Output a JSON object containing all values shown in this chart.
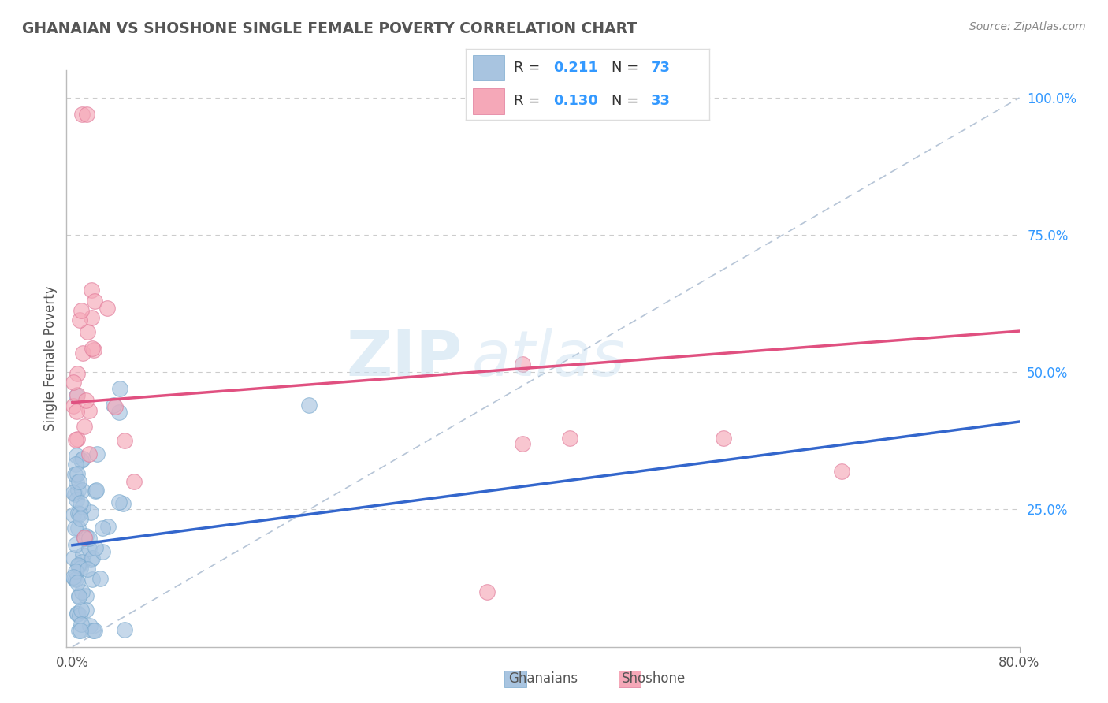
{
  "title": "GHANAIAN VS SHOSHONE SINGLE FEMALE POVERTY CORRELATION CHART",
  "source_text": "Source: ZipAtlas.com",
  "x_min": 0.0,
  "x_max": 0.8,
  "y_min": 0.0,
  "y_max": 1.05,
  "ghanaian_color": "#a8c4e0",
  "ghanaian_edge": "#7aaace",
  "shoshone_color": "#f5a8b8",
  "shoshone_edge": "#e07898",
  "ghanaian_R": 0.211,
  "ghanaian_N": 73,
  "shoshone_R": 0.13,
  "shoshone_N": 33,
  "legend_label_1": "Ghanaians",
  "legend_label_2": "Shoshone",
  "ylabel": "Single Female Poverty",
  "watermark_zip": "ZIP",
  "watermark_atlas": "atlas",
  "diag_color": "#aabbd0",
  "grid_color": "#cccccc",
  "blue_line_color": "#3366cc",
  "pink_line_color": "#e05080",
  "ytick_color": "#3399ff",
  "title_color": "#555555",
  "source_color": "#888888",
  "legend_R_label_color": "#333333",
  "legend_val_color": "#3399ff",
  "gh_line_x0": 0.0,
  "gh_line_y0": 0.185,
  "gh_line_x1": 0.8,
  "gh_line_y1": 0.41,
  "sh_line_x0": 0.0,
  "sh_line_y0": 0.445,
  "sh_line_x1": 0.8,
  "sh_line_y1": 0.575
}
